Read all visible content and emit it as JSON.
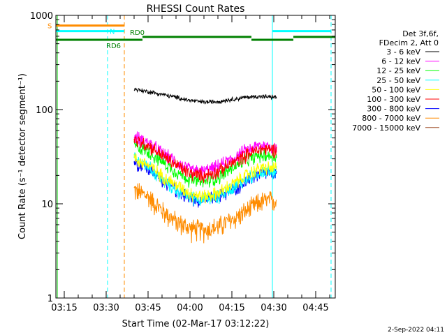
{
  "chart_data": {
    "type": "line",
    "title": "RHESSI Count Rates",
    "xlabel": "Start Time (02-Mar-17 03:12:22)",
    "ylabel": "Count Rate (s⁻¹ detector segment⁻¹)",
    "xlim": [
      "03:12",
      "04:52"
    ],
    "ylim": [
      1,
      1000
    ],
    "yscale": "log",
    "x_ticks": [
      "03:15",
      "03:30",
      "03:45",
      "04:00",
      "04:15",
      "04:30",
      "04:45"
    ],
    "y_ticks": [
      "1",
      "10",
      "100",
      "1000"
    ],
    "legend_header": [
      "Det 3f,6f,",
      "FDecim 2, Att 0"
    ],
    "legend_position": "right",
    "timestamp": "2-Sep-2022 04:11",
    "series": [
      {
        "name": "3 - 6 keV",
        "color": "#000000",
        "x": [
          "03:40",
          "03:45",
          "03:50",
          "03:55",
          "04:00",
          "04:05",
          "04:10",
          "04:15",
          "04:20",
          "04:25",
          "04:31"
        ],
        "values": [
          165,
          155,
          145,
          135,
          125,
          120,
          122,
          128,
          135,
          138,
          135
        ]
      },
      {
        "name": "6 - 12 keV",
        "color": "#ff00ff",
        "x": [
          "03:40",
          "03:45",
          "03:50",
          "03:55",
          "04:00",
          "04:05",
          "04:10",
          "04:15",
          "04:20",
          "04:25",
          "04:31"
        ],
        "values": [
          52,
          45,
          35,
          28,
          23,
          22,
          25,
          30,
          37,
          42,
          40
        ]
      },
      {
        "name": "12 - 25 keV",
        "color": "#00ff00",
        "x": [
          "03:40",
          "03:45",
          "03:50",
          "03:55",
          "04:00",
          "04:05",
          "04:10",
          "04:15",
          "04:20",
          "04:25",
          "04:31"
        ],
        "values": [
          42,
          36,
          28,
          22,
          18,
          17,
          19,
          24,
          29,
          33,
          32
        ]
      },
      {
        "name": "25 - 50 keV",
        "color": "#00ffff",
        "x": [
          "03:40",
          "03:45",
          "03:50",
          "03:55",
          "04:00",
          "04:05",
          "04:10",
          "04:15",
          "04:20",
          "04:25",
          "04:31"
        ],
        "values": [
          30,
          25,
          18,
          14,
          12,
          11,
          12,
          15,
          18,
          22,
          22
        ]
      },
      {
        "name": "50 - 100 keV",
        "color": "#ffff00",
        "x": [
          "03:40",
          "03:45",
          "03:50",
          "03:55",
          "04:00",
          "04:05",
          "04:10",
          "04:15",
          "04:20",
          "04:25",
          "04:31"
        ],
        "values": [
          30,
          26,
          20,
          16,
          13,
          12,
          13,
          16,
          20,
          24,
          24
        ]
      },
      {
        "name": "100 - 300 keV",
        "color": "#ff0000",
        "x": [
          "03:40",
          "03:45",
          "03:50",
          "03:55",
          "04:00",
          "04:05",
          "04:10",
          "04:15",
          "04:20",
          "04:25",
          "04:31"
        ],
        "values": [
          48,
          42,
          33,
          26,
          21,
          20,
          22,
          27,
          33,
          38,
          38
        ]
      },
      {
        "name": "300 - 800 keV",
        "color": "#0000ff",
        "x": [
          "03:40",
          "03:45",
          "03:50",
          "03:55",
          "04:00",
          "04:05",
          "04:10",
          "04:15",
          "04:20",
          "04:25",
          "04:31"
        ],
        "values": [
          28,
          24,
          18,
          14,
          11.5,
          11,
          12,
          14,
          17,
          21,
          21
        ]
      },
      {
        "name": "800 - 7000 keV",
        "color": "#ff8c00",
        "x": [
          "03:40",
          "03:45",
          "03:50",
          "03:55",
          "04:00",
          "04:05",
          "04:10",
          "04:15",
          "04:20",
          "04:25",
          "04:31"
        ],
        "values": [
          14,
          12,
          8.5,
          6.5,
          5.5,
          5.3,
          5.7,
          6.8,
          8.3,
          10.5,
          11
        ]
      },
      {
        "name": "7000 - 15000 keV",
        "color": "#a0522d",
        "x": [],
        "values": []
      }
    ],
    "annotations": [
      {
        "label": "S",
        "color": "#ff8c00",
        "segments": [
          [
            "03:12",
            "03:36.5"
          ]
        ],
        "level": 780
      },
      {
        "label": "N",
        "color": "#00ffff",
        "segments": [
          [
            "03:12",
            "03:36.5"
          ],
          [
            "04:29.5",
            "04:50.5"
          ]
        ],
        "level": 680
      },
      {
        "label": "RD0",
        "color": "#008000",
        "segments": [
          [
            "03:43",
            "04:22"
          ],
          [
            "04:37",
            "04:52"
          ]
        ],
        "level": 590
      },
      {
        "label": "RD6",
        "color": "#008000",
        "segments": [
          [
            "03:12",
            "03:36.5"
          ],
          [
            "03:36.5",
            "03:43"
          ],
          [
            "04:22",
            "04:37"
          ]
        ],
        "level": 550
      }
    ],
    "vertical_markers": [
      {
        "x": "03:12.5",
        "color": "#00cc00",
        "style": "solid"
      },
      {
        "x": "03:30.5",
        "color": "#00ffff",
        "style": "dashed"
      },
      {
        "x": "03:36.5",
        "color": "#ff8c00",
        "style": "dashed"
      },
      {
        "x": "04:29.5",
        "color": "#00ffff",
        "style": "solid"
      },
      {
        "x": "04:50.5",
        "color": "#00ffff",
        "style": "dashed"
      }
    ]
  }
}
